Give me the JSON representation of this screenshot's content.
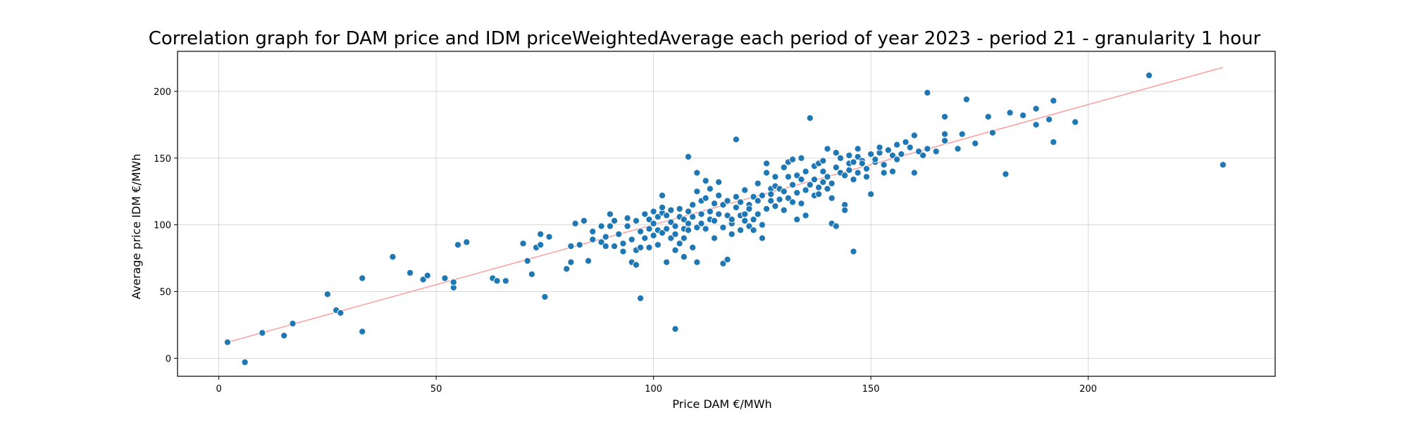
{
  "chart_data": {
    "type": "scatter",
    "title": "Correlation graph for DAM price and IDM priceWeightedAverage each period of year 2023 - period 21 - granularity 1 hour",
    "xlabel": "Price DAM €/MWh",
    "ylabel": "Average price IDM €/MWh",
    "xlim": [
      -9.5,
      243
    ],
    "ylim": [
      -13.5,
      230
    ],
    "xticks": [
      0,
      50,
      100,
      150,
      200
    ],
    "yticks": [
      0,
      50,
      100,
      150,
      200
    ],
    "grid": true,
    "colors": {
      "points": "#1f77b4",
      "trend": "#ff9896"
    },
    "trend_line": {
      "x": [
        2,
        231
      ],
      "y": [
        12,
        218
      ]
    },
    "points": [
      [
        2,
        12
      ],
      [
        6,
        -3
      ],
      [
        10,
        19
      ],
      [
        15,
        17
      ],
      [
        17,
        26
      ],
      [
        25,
        48
      ],
      [
        27,
        36
      ],
      [
        28,
        34
      ],
      [
        33,
        20
      ],
      [
        33,
        60
      ],
      [
        40,
        76
      ],
      [
        44,
        64
      ],
      [
        47,
        59
      ],
      [
        48,
        62
      ],
      [
        52,
        60
      ],
      [
        54,
        53
      ],
      [
        54,
        57
      ],
      [
        55,
        85
      ],
      [
        57,
        87
      ],
      [
        63,
        60
      ],
      [
        64,
        58
      ],
      [
        66,
        58
      ],
      [
        70,
        86
      ],
      [
        71,
        73
      ],
      [
        72,
        63
      ],
      [
        73,
        83
      ],
      [
        74,
        85
      ],
      [
        74,
        93
      ],
      [
        75,
        46
      ],
      [
        76,
        91
      ],
      [
        80,
        67
      ],
      [
        81,
        72
      ],
      [
        81,
        84
      ],
      [
        82,
        101
      ],
      [
        83,
        85
      ],
      [
        84,
        103
      ],
      [
        85,
        73
      ],
      [
        86,
        89
      ],
      [
        86,
        95
      ],
      [
        88,
        87
      ],
      [
        88,
        99
      ],
      [
        89,
        91
      ],
      [
        89,
        84
      ],
      [
        90,
        108
      ],
      [
        90,
        99
      ],
      [
        91,
        84
      ],
      [
        91,
        103
      ],
      [
        92,
        93
      ],
      [
        93,
        86
      ],
      [
        93,
        80
      ],
      [
        94,
        99
      ],
      [
        94,
        105
      ],
      [
        95,
        72
      ],
      [
        95,
        89
      ],
      [
        96,
        81
      ],
      [
        96,
        103
      ],
      [
        96,
        70
      ],
      [
        97,
        83
      ],
      [
        97,
        45
      ],
      [
        97,
        95
      ],
      [
        98,
        108
      ],
      [
        98,
        90
      ],
      [
        99,
        83
      ],
      [
        99,
        97
      ],
      [
        99,
        104
      ],
      [
        100,
        92
      ],
      [
        100,
        101
      ],
      [
        100,
        110
      ],
      [
        101,
        85
      ],
      [
        101,
        96
      ],
      [
        101,
        106
      ],
      [
        102,
        109
      ],
      [
        102,
        113
      ],
      [
        102,
        94
      ],
      [
        102,
        122
      ],
      [
        103,
        107
      ],
      [
        103,
        72
      ],
      [
        103,
        97
      ],
      [
        104,
        102
      ],
      [
        104,
        111
      ],
      [
        104,
        90
      ],
      [
        105,
        81
      ],
      [
        105,
        22
      ],
      [
        105,
        99
      ],
      [
        105,
        93
      ],
      [
        106,
        112
      ],
      [
        106,
        106
      ],
      [
        106,
        86
      ],
      [
        107,
        97
      ],
      [
        107,
        104
      ],
      [
        107,
        76
      ],
      [
        107,
        90
      ],
      [
        108,
        101
      ],
      [
        108,
        96
      ],
      [
        108,
        110
      ],
      [
        108,
        151
      ],
      [
        109,
        115
      ],
      [
        109,
        106
      ],
      [
        109,
        83
      ],
      [
        110,
        98
      ],
      [
        110,
        125
      ],
      [
        110,
        139
      ],
      [
        110,
        72
      ],
      [
        111,
        108
      ],
      [
        111,
        118
      ],
      [
        111,
        101
      ],
      [
        112,
        133
      ],
      [
        112,
        120
      ],
      [
        112,
        97
      ],
      [
        113,
        110
      ],
      [
        113,
        104
      ],
      [
        113,
        127
      ],
      [
        114,
        90
      ],
      [
        114,
        116
      ],
      [
        114,
        103
      ],
      [
        115,
        122
      ],
      [
        115,
        108
      ],
      [
        115,
        132
      ],
      [
        116,
        71
      ],
      [
        116,
        98
      ],
      [
        116,
        115
      ],
      [
        117,
        118
      ],
      [
        117,
        107
      ],
      [
        117,
        74
      ],
      [
        118,
        101
      ],
      [
        118,
        93
      ],
      [
        118,
        104
      ],
      [
        119,
        113
      ],
      [
        119,
        164
      ],
      [
        119,
        121
      ],
      [
        120,
        107
      ],
      [
        120,
        96
      ],
      [
        120,
        117
      ],
      [
        121,
        108
      ],
      [
        121,
        103
      ],
      [
        121,
        126
      ],
      [
        122,
        99
      ],
      [
        122,
        115
      ],
      [
        122,
        112
      ],
      [
        123,
        121
      ],
      [
        123,
        96
      ],
      [
        123,
        104
      ],
      [
        124,
        118
      ],
      [
        124,
        131
      ],
      [
        124,
        108
      ],
      [
        125,
        122
      ],
      [
        125,
        90
      ],
      [
        125,
        100
      ],
      [
        126,
        146
      ],
      [
        126,
        139
      ],
      [
        126,
        112
      ],
      [
        127,
        127
      ],
      [
        127,
        118
      ],
      [
        127,
        123
      ],
      [
        128,
        114
      ],
      [
        128,
        136
      ],
      [
        128,
        129
      ],
      [
        129,
        119
      ],
      [
        129,
        127
      ],
      [
        130,
        143
      ],
      [
        130,
        111
      ],
      [
        130,
        125
      ],
      [
        131,
        147
      ],
      [
        131,
        136
      ],
      [
        131,
        120
      ],
      [
        132,
        130
      ],
      [
        132,
        117
      ],
      [
        132,
        149
      ],
      [
        133,
        104
      ],
      [
        133,
        137
      ],
      [
        133,
        124
      ],
      [
        134,
        134
      ],
      [
        134,
        116
      ],
      [
        134,
        150
      ],
      [
        135,
        126
      ],
      [
        135,
        107
      ],
      [
        135,
        140
      ],
      [
        136,
        180
      ],
      [
        136,
        130
      ],
      [
        137,
        122
      ],
      [
        137,
        134
      ],
      [
        137,
        144
      ],
      [
        138,
        128
      ],
      [
        138,
        146
      ],
      [
        138,
        123
      ],
      [
        139,
        132
      ],
      [
        139,
        140
      ],
      [
        139,
        148
      ],
      [
        140,
        136
      ],
      [
        140,
        157
      ],
      [
        140,
        127
      ],
      [
        141,
        120
      ],
      [
        141,
        131
      ],
      [
        141,
        101
      ],
      [
        142,
        99
      ],
      [
        142,
        143
      ],
      [
        142,
        154
      ],
      [
        143,
        150
      ],
      [
        143,
        139
      ],
      [
        144,
        137
      ],
      [
        144,
        115
      ],
      [
        144,
        111
      ],
      [
        145,
        146
      ],
      [
        145,
        141
      ],
      [
        145,
        152
      ],
      [
        146,
        134
      ],
      [
        146,
        147
      ],
      [
        146,
        80
      ],
      [
        147,
        139
      ],
      [
        147,
        157
      ],
      [
        147,
        151
      ],
      [
        148,
        148
      ],
      [
        148,
        146
      ],
      [
        149,
        142
      ],
      [
        149,
        136
      ],
      [
        150,
        123
      ],
      [
        150,
        153
      ],
      [
        151,
        147
      ],
      [
        151,
        149
      ],
      [
        152,
        154
      ],
      [
        152,
        158
      ],
      [
        153,
        139
      ],
      [
        153,
        145
      ],
      [
        154,
        156
      ],
      [
        155,
        152
      ],
      [
        155,
        140
      ],
      [
        156,
        149
      ],
      [
        156,
        160
      ],
      [
        157,
        153
      ],
      [
        158,
        162
      ],
      [
        159,
        158
      ],
      [
        160,
        139
      ],
      [
        160,
        167
      ],
      [
        161,
        155
      ],
      [
        162,
        152
      ],
      [
        163,
        199
      ],
      [
        163,
        157
      ],
      [
        165,
        155
      ],
      [
        167,
        163
      ],
      [
        167,
        168
      ],
      [
        167,
        181
      ],
      [
        170,
        157
      ],
      [
        171,
        168
      ],
      [
        172,
        194
      ],
      [
        174,
        161
      ],
      [
        177,
        181
      ],
      [
        178,
        169
      ],
      [
        181,
        138
      ],
      [
        182,
        184
      ],
      [
        185,
        182
      ],
      [
        188,
        175
      ],
      [
        188,
        187
      ],
      [
        191,
        179
      ],
      [
        192,
        193
      ],
      [
        192,
        162
      ],
      [
        197,
        177
      ],
      [
        214,
        212
      ],
      [
        231,
        145
      ]
    ]
  }
}
